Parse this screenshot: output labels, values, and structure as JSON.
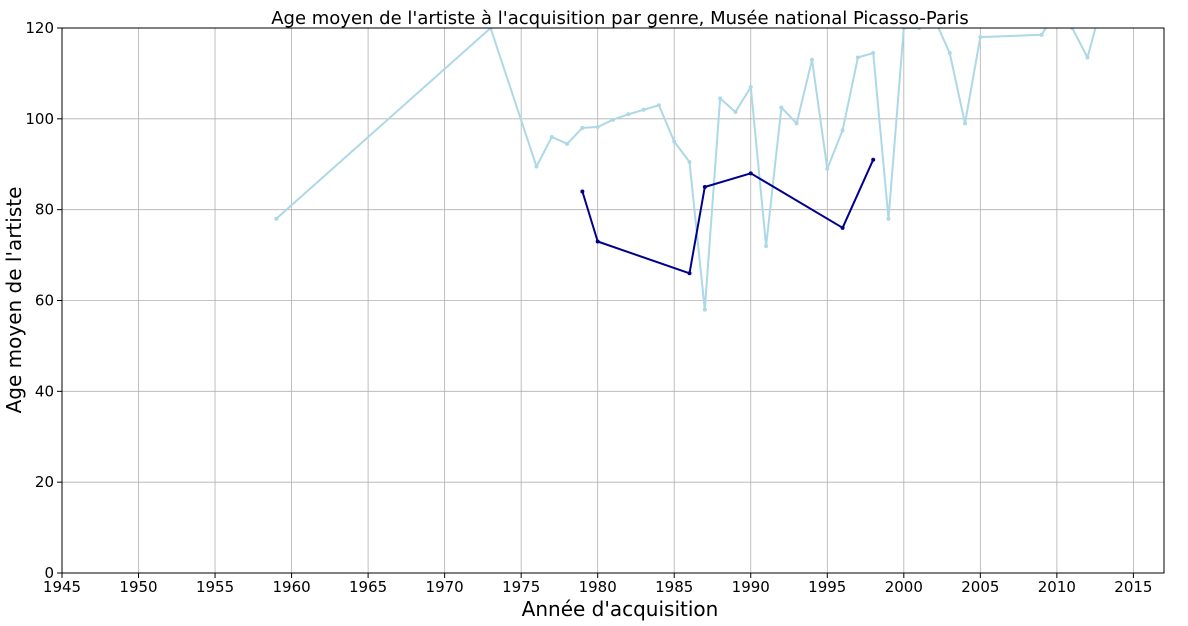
{
  "chart_data": {
    "type": "line",
    "title": "Age moyen de l'artiste à l'acquisition par genre, Musée national Picasso-Paris",
    "xlabel": "Année d'acquisition",
    "ylabel": "Age moyen de l'artiste",
    "xlim": [
      1945,
      2017
    ],
    "ylim": [
      0,
      120
    ],
    "xticks": [
      1945,
      1950,
      1955,
      1960,
      1965,
      1970,
      1975,
      1980,
      1985,
      1990,
      1995,
      2000,
      2005,
      2010,
      2015
    ],
    "yticks": [
      0,
      20,
      40,
      60,
      80,
      100,
      120
    ],
    "grid": true,
    "series": [
      {
        "color": "#add8e6",
        "x": [
          1959,
          1973,
          1976,
          1977,
          1978,
          1979,
          1980,
          1981,
          1982,
          1983,
          1984,
          1985,
          1986,
          1987,
          1988,
          1989,
          1990,
          1991,
          1992,
          1993,
          1994,
          1995,
          1996,
          1997,
          1998,
          1999,
          2000,
          2001,
          2002,
          2003,
          2004,
          2005,
          2009,
          2010,
          2011,
          2012,
          2013
        ],
        "y": [
          78,
          120,
          89.5,
          96,
          94.5,
          98,
          98.2,
          99.8,
          101,
          102,
          103,
          95,
          90.5,
          58,
          104.5,
          101.5,
          107,
          72,
          102.5,
          99,
          113,
          89,
          97.5,
          113.5,
          114.5,
          78,
          120,
          120,
          122,
          114.5,
          99,
          118,
          118.5,
          124,
          120,
          113.5,
          126
        ]
      },
      {
        "color": "#00008b",
        "x": [
          1979,
          1980,
          1986,
          1987,
          1990,
          1996,
          1998
        ],
        "y": [
          84,
          73,
          66,
          85,
          88,
          76,
          91
        ]
      }
    ]
  }
}
